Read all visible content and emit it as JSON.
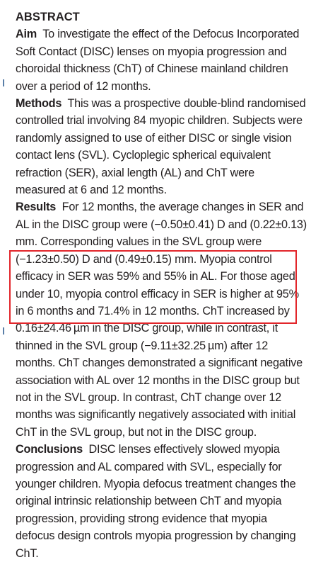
{
  "heading": "ABSTRACT",
  "aim": {
    "label": "Aim",
    "text": "To investigate the effect of the Defocus Incorporated Soft Contact (DISC) lenses on myopia progression and choroidal thickness (ChT) of Chinese mainland children over a period of 12 months."
  },
  "methods": {
    "label": "Methods",
    "text": "This was a prospective double-blind randomised controlled trial involving 84 myopic children. Subjects were randomly assigned to use of either DISC or single vision contact lens (SVL). Cycloplegic spherical equivalent refraction (SER), axial length (AL) and ChT were measured at 6 and 12 months."
  },
  "results": {
    "label": "Results",
    "text": "For 12 months, the average changes in SER and AL in the DISC group were (−0.50±0.41) D and (0.22±0.13) mm. Corresponding values in the SVL group were (−1.23±0.50) D and (0.49±0.15) mm. Myopia control efficacy in SER was 59% and 55% in AL. For those aged under 10, myopia control efficacy in SER is higher at 95% in 6 months and 71.4% in 12 months. ChT increased by 0.16±24.46 µm in the DISC group, while in contrast, it thinned in the SVL group (−9.11±32.25 µm) after 12 months. ChT changes demonstrated a significant negative association with AL over 12 months in the DISC group but not in the SVL group. In contrast, ChT change over 12 months was significantly negatively associated with initial ChT in the SVL group, but not in the DISC group."
  },
  "conclusions": {
    "label": "Conclusions",
    "text": "DISC lenses effectively slowed myopia progression and AL compared with SVL, especially for younger children. Myopia defocus treatment changes the original intrinsic relationship between ChT and myopia progression, providing strong evidence that myopia defocus design controls myopia progression by changing ChT."
  },
  "colors": {
    "highlight_box": "#e2262b",
    "text": "#231f20"
  }
}
